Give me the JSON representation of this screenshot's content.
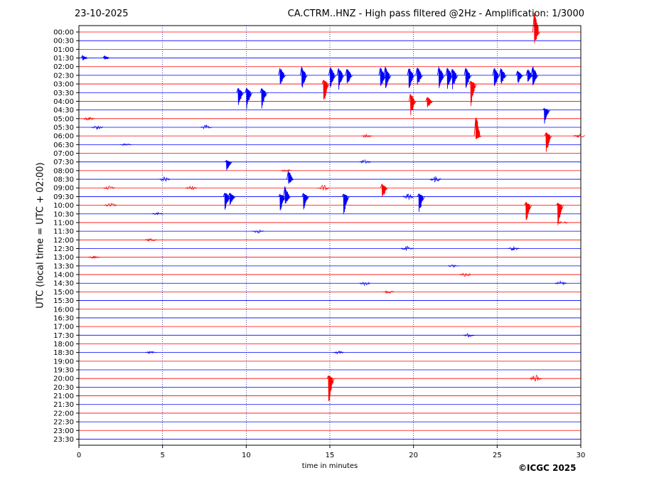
{
  "header": {
    "date": "23-10-2025",
    "title": "CA.CTRM..HNZ - High pass filtered @2Hz - Amplification: 1/3000"
  },
  "footer": {
    "credit": "©ICGC 2025"
  },
  "colors": {
    "even_rows": "#ff0000",
    "odd_rows": "#0000ff",
    "grid": "#000080"
  },
  "chart_data": {
    "type": "line",
    "chart_kind": "helicorder seismogram",
    "xlabel": "time in minutes",
    "ylabel": "UTC (local time = UTC + 02:00)",
    "xlim": [
      0,
      30
    ],
    "xticks": [
      0,
      5,
      10,
      15,
      20,
      25,
      30
    ],
    "xtick_labels": [
      "0",
      "5",
      "10",
      "15",
      "20",
      "25",
      "30"
    ],
    "grid": "vertical dotted at 5-minute intervals",
    "row_labels": [
      "00:00",
      "00:30",
      "01:00",
      "01:30",
      "02:00",
      "02:30",
      "03:00",
      "03:30",
      "04:00",
      "04:30",
      "05:00",
      "05:30",
      "06:00",
      "06:30",
      "07:00",
      "07:30",
      "08:00",
      "08:30",
      "09:00",
      "09:30",
      "10:00",
      "10:30",
      "11:00",
      "11:30",
      "12:00",
      "12:30",
      "13:00",
      "13:30",
      "14:00",
      "14:30",
      "15:00",
      "15:30",
      "16:00",
      "16:30",
      "17:00",
      "17:30",
      "18:00",
      "18:30",
      "19:00",
      "19:30",
      "20:00",
      "20:30",
      "21:00",
      "21:30",
      "22:00",
      "22:30",
      "23:00",
      "23:30"
    ],
    "events": [
      {
        "row": 0,
        "minute": 27.3,
        "up": 3.1,
        "down": 1.6
      },
      {
        "row": 3,
        "minute": 0.3,
        "up": 0.3,
        "down": 0.3
      },
      {
        "row": 3,
        "minute": 1.6,
        "up": 0.3,
        "down": 0.2
      },
      {
        "row": 5,
        "minute": 12.1,
        "up": 1.0,
        "down": 1.3
      },
      {
        "row": 5,
        "minute": 13.4,
        "up": 1.1,
        "down": 1.8
      },
      {
        "row": 5,
        "minute": 15.1,
        "up": 1.1,
        "down": 1.6
      },
      {
        "row": 5,
        "minute": 15.6,
        "up": 1.0,
        "down": 1.8
      },
      {
        "row": 5,
        "minute": 16.1,
        "up": 1.0,
        "down": 1.3
      },
      {
        "row": 5,
        "minute": 18.1,
        "up": 1.0,
        "down": 1.8
      },
      {
        "row": 5,
        "minute": 18.4,
        "up": 1.0,
        "down": 1.8
      },
      {
        "row": 5,
        "minute": 19.8,
        "up": 1.0,
        "down": 1.8
      },
      {
        "row": 5,
        "minute": 20.3,
        "up": 1.1,
        "down": 1.4
      },
      {
        "row": 5,
        "minute": 21.6,
        "up": 1.1,
        "down": 1.8
      },
      {
        "row": 5,
        "minute": 22.1,
        "up": 1.0,
        "down": 1.8
      },
      {
        "row": 5,
        "minute": 22.4,
        "up": 0.9,
        "down": 1.8
      },
      {
        "row": 5,
        "minute": 23.2,
        "up": 1.0,
        "down": 1.8
      },
      {
        "row": 5,
        "minute": 24.9,
        "up": 1.0,
        "down": 1.6
      },
      {
        "row": 5,
        "minute": 25.3,
        "up": 1.0,
        "down": 1.2
      },
      {
        "row": 5,
        "minute": 26.3,
        "up": 0.6,
        "down": 1.1
      },
      {
        "row": 5,
        "minute": 26.9,
        "up": 0.8,
        "down": 1.0
      },
      {
        "row": 5,
        "minute": 27.2,
        "up": 1.2,
        "down": 1.4
      },
      {
        "row": 6,
        "minute": 14.7,
        "up": 0.6,
        "down": 2.5
      },
      {
        "row": 6,
        "minute": 23.5,
        "up": 0.4,
        "down": 2.8
      },
      {
        "row": 7,
        "minute": 9.6,
        "up": 0.6,
        "down": 1.6
      },
      {
        "row": 7,
        "minute": 10.1,
        "up": 0.6,
        "down": 2.0
      },
      {
        "row": 7,
        "minute": 11.0,
        "up": 0.6,
        "down": 2.0
      },
      {
        "row": 8,
        "minute": 19.9,
        "up": 1.0,
        "down": 1.8
      },
      {
        "row": 8,
        "minute": 20.9,
        "up": 0.6,
        "down": 0.9
      },
      {
        "row": 9,
        "minute": 27.9,
        "up": 0.2,
        "down": 1.8
      },
      {
        "row": 12,
        "minute": 23.8,
        "up": 2.8,
        "down": 0.5
      },
      {
        "row": 12,
        "minute": 28.0,
        "up": 0.5,
        "down": 2.2
      },
      {
        "row": 15,
        "minute": 8.9,
        "up": 0.2,
        "down": 1.2
      },
      {
        "row": 17,
        "minute": 12.6,
        "up": 1.2,
        "down": 0.6
      },
      {
        "row": 18,
        "minute": 18.2,
        "up": 0.5,
        "down": 1.4
      },
      {
        "row": 19,
        "minute": 8.8,
        "up": 0.6,
        "down": 1.8
      },
      {
        "row": 19,
        "minute": 9.1,
        "up": 0.5,
        "down": 1.2
      },
      {
        "row": 19,
        "minute": 12.1,
        "up": 0.3,
        "down": 1.9
      },
      {
        "row": 19,
        "minute": 12.4,
        "up": 1.2,
        "down": 1.0
      },
      {
        "row": 19,
        "minute": 13.5,
        "up": 0.4,
        "down": 1.6
      },
      {
        "row": 19,
        "minute": 15.9,
        "up": 0.4,
        "down": 2.4
      },
      {
        "row": 19,
        "minute": 20.4,
        "up": 0.4,
        "down": 2.1
      },
      {
        "row": 20,
        "minute": 26.8,
        "up": 0.4,
        "down": 2.2
      },
      {
        "row": 20,
        "minute": 28.7,
        "up": 0.3,
        "down": 2.6
      },
      {
        "row": 40,
        "minute": 15.0,
        "up": 0.4,
        "down": 3.3
      }
    ],
    "noise_bursts": [
      {
        "row": 10,
        "minute": 0.6,
        "amp": 0.3
      },
      {
        "row": 11,
        "minute": 1.1,
        "amp": 0.3
      },
      {
        "row": 11,
        "minute": 7.6,
        "amp": 0.3
      },
      {
        "row": 12,
        "minute": 17.2,
        "amp": 0.25
      },
      {
        "row": 12,
        "minute": 29.9,
        "amp": 0.25
      },
      {
        "row": 13,
        "minute": 2.8,
        "amp": 0.2
      },
      {
        "row": 15,
        "minute": 17.1,
        "amp": 0.3
      },
      {
        "row": 16,
        "minute": 12.4,
        "amp": 0.2
      },
      {
        "row": 17,
        "minute": 5.1,
        "amp": 0.3
      },
      {
        "row": 17,
        "minute": 21.3,
        "amp": 0.4
      },
      {
        "row": 18,
        "minute": 1.8,
        "amp": 0.3
      },
      {
        "row": 18,
        "minute": 6.7,
        "amp": 0.3
      },
      {
        "row": 18,
        "minute": 14.6,
        "amp": 0.4
      },
      {
        "row": 19,
        "minute": 19.7,
        "amp": 0.4
      },
      {
        "row": 20,
        "minute": 1.9,
        "amp": 0.3
      },
      {
        "row": 21,
        "minute": 4.7,
        "amp": 0.2
      },
      {
        "row": 22,
        "minute": 28.9,
        "amp": 0.2
      },
      {
        "row": 23,
        "minute": 10.7,
        "amp": 0.25
      },
      {
        "row": 24,
        "minute": 4.3,
        "amp": 0.25
      },
      {
        "row": 25,
        "minute": 19.6,
        "amp": 0.3
      },
      {
        "row": 25,
        "minute": 26.0,
        "amp": 0.3
      },
      {
        "row": 26,
        "minute": 0.9,
        "amp": 0.2
      },
      {
        "row": 27,
        "minute": 22.4,
        "amp": 0.2
      },
      {
        "row": 28,
        "minute": 23.1,
        "amp": 0.25
      },
      {
        "row": 29,
        "minute": 17.1,
        "amp": 0.3
      },
      {
        "row": 29,
        "minute": 28.8,
        "amp": 0.3
      },
      {
        "row": 30,
        "minute": 18.5,
        "amp": 0.2
      },
      {
        "row": 35,
        "minute": 23.3,
        "amp": 0.25
      },
      {
        "row": 37,
        "minute": 4.3,
        "amp": 0.2
      },
      {
        "row": 37,
        "minute": 15.5,
        "amp": 0.2
      },
      {
        "row": 40,
        "minute": 27.3,
        "amp": 0.5
      }
    ]
  }
}
